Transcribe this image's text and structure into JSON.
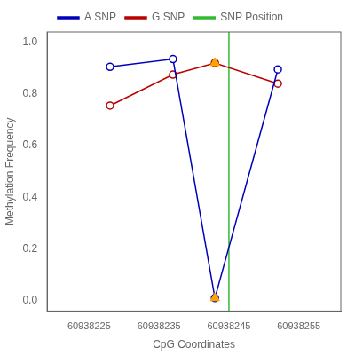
{
  "chart_data": {
    "type": "line",
    "xlabel": "CpG Coordinates",
    "ylabel": "Methylation Frequency",
    "series": [
      {
        "name": "A SNP",
        "color": "#0000BB",
        "marker": "circle",
        "line_style": "solid",
        "x": [
          60938228,
          60938237,
          60938243,
          60938252
        ],
        "values": [
          0.905,
          0.935,
          0.01,
          0.895
        ]
      },
      {
        "name": "G SNP",
        "color": "#BB0000",
        "marker": "circle",
        "line_style": "solid",
        "x": [
          60938228,
          60938237,
          60938243,
          60938252
        ],
        "values": [
          0.755,
          0.875,
          0.92,
          0.84
        ]
      },
      {
        "name": "SNP Position",
        "color": "#33BB33",
        "type": "vline",
        "line_style": "solid",
        "x": [
          60938245
        ]
      },
      {
        "color": "#FFA500",
        "type": "scatter",
        "marker": "triangle",
        "x": [
          60938243,
          60938243
        ],
        "values": [
          0.92,
          0.01
        ]
      }
    ],
    "xlim": [
      60938219,
      60938261
    ],
    "ylim": [
      -0.04,
      1.04
    ],
    "xticks": [
      60938225,
      60938235,
      60938245,
      60938255
    ],
    "yticks": [
      {
        "value": 0.0,
        "label": "0.0"
      },
      0.2,
      0.4,
      0.6,
      0.8,
      {
        "value": 1.0,
        "label": "1.0"
      }
    ],
    "grid": false,
    "legend": "top"
  }
}
